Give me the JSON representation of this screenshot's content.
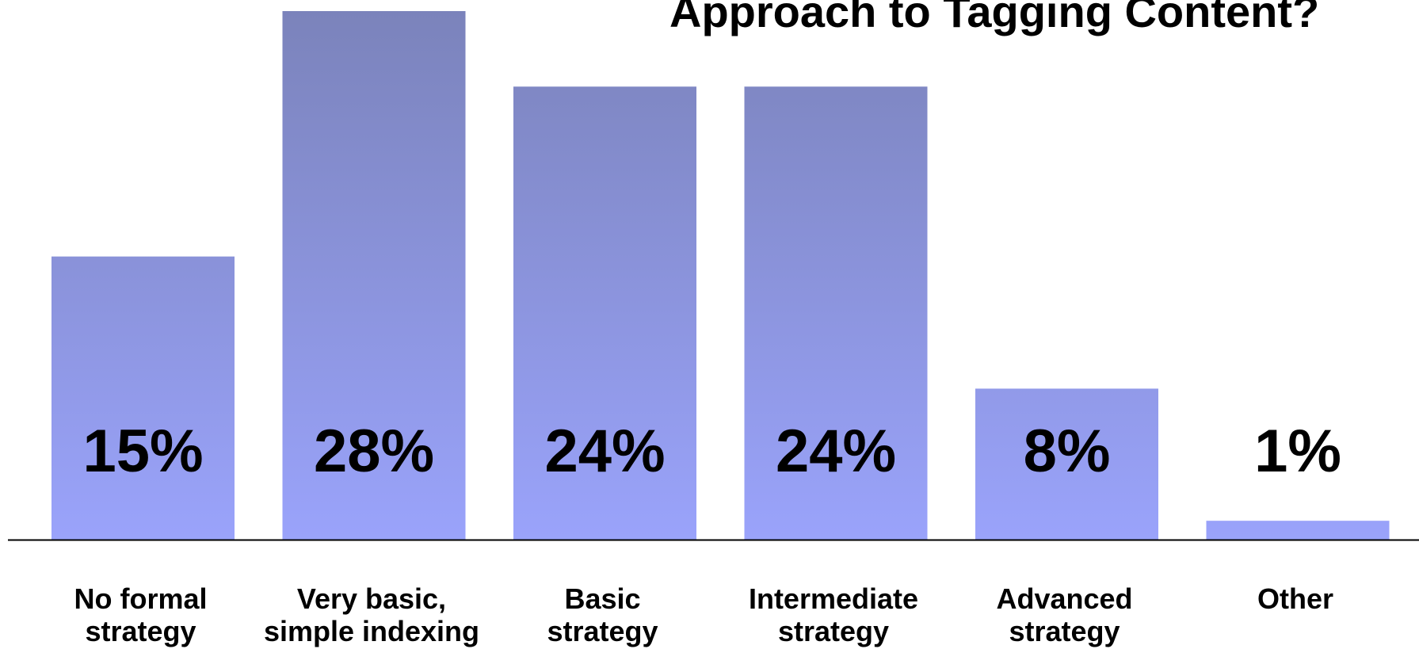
{
  "chart_data": {
    "type": "bar",
    "title": "Approach to Tagging Content?",
    "xlabel": "",
    "ylabel": "",
    "ylim": [
      0,
      28
    ],
    "grid": false,
    "categories": [
      [
        "No formal",
        "strategy"
      ],
      [
        "Very basic,",
        "simple indexing"
      ],
      [
        "Basic",
        "strategy"
      ],
      [
        "Intermediate",
        "strategy"
      ],
      [
        "Advanced",
        "strategy"
      ],
      [
        "Other"
      ]
    ],
    "values": [
      15,
      28,
      24,
      24,
      8,
      1
    ],
    "value_labels": [
      "15%",
      "28%",
      "24%",
      "24%",
      "8%",
      "1%"
    ],
    "bar_color_top": "#7b83bb",
    "bar_color_bottom": "#9aa3fb",
    "axis_color": "#000000"
  }
}
